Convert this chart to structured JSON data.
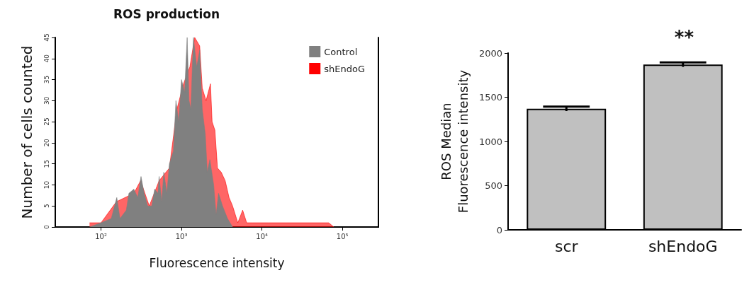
{
  "chart_data": [
    {
      "type": "area",
      "title": "ROS production",
      "xlabel": "Fluorescence intensity",
      "ylabel": "Number of cells counted",
      "log": "x",
      "xlim": [
        27,
        280000
      ],
      "xticks": [
        {
          "value": 100,
          "label": "10²"
        },
        {
          "value": 1000,
          "label": "10³"
        },
        {
          "value": 10000,
          "label": "10⁴"
        },
        {
          "value": 100000,
          "label": "10⁵"
        }
      ],
      "ylim": [
        0,
        45
      ],
      "yticks": [
        0,
        5,
        10,
        15,
        20,
        25,
        30,
        35,
        40,
        45
      ],
      "grid": false,
      "legend": "top right",
      "series": [
        {
          "name": "Control",
          "color": "#808080",
          "x": [
            72,
            100,
            134,
            157,
            172,
            206,
            222,
            256,
            286,
            314,
            343,
            380,
            427,
            464,
            510,
            527,
            568,
            602,
            658,
            707,
            793,
            853,
            922,
            1000,
            1093,
            1176,
            1242,
            1307,
            1406,
            1546,
            1683,
            1811,
            1977,
            2091,
            2252,
            2512,
            2692,
            2886,
            3236,
            3733,
            4315
          ],
          "values": [
            0,
            1,
            2,
            7,
            2,
            4,
            8,
            9,
            7,
            12,
            8,
            5,
            5,
            9,
            8,
            12,
            6,
            13,
            8,
            15,
            18,
            30,
            25,
            35,
            32,
            45,
            30,
            28,
            45,
            38,
            42,
            28,
            22,
            13,
            16,
            10,
            3,
            8,
            5,
            2,
            0
          ]
        },
        {
          "name": "shEndoG",
          "color": "#ff0000",
          "x": [
            72,
            100,
            155,
            256,
            310,
            398,
            527,
            707,
            878,
            1060,
            1270,
            1459,
            1683,
            1811,
            2020,
            2291,
            2400,
            2600,
            2800,
            3119,
            3490,
            3900,
            4315,
            5012,
            5754,
            6457,
            7700,
            11885,
            19953,
            67700,
            78000
          ],
          "values": [
            1,
            1,
            6,
            8,
            11,
            5,
            11,
            14,
            28,
            34,
            38,
            45,
            43,
            33,
            30,
            34,
            25,
            23,
            14,
            13,
            11,
            7,
            5,
            1,
            4,
            1,
            1,
            1,
            1,
            1,
            0
          ]
        }
      ]
    },
    {
      "type": "bar",
      "ylabel": "ROS Median Fluorescence intensity",
      "categories": [
        "scr",
        "shEndoG"
      ],
      "values": [
        1370,
        1870
      ],
      "errors": [
        25,
        25
      ],
      "color": "#c0c0c0",
      "ylim": [
        0,
        2000
      ],
      "yticks": [
        0,
        500,
        1000,
        1500,
        2000
      ],
      "grid": false,
      "legend": false,
      "annotations": [
        "**"
      ]
    }
  ]
}
